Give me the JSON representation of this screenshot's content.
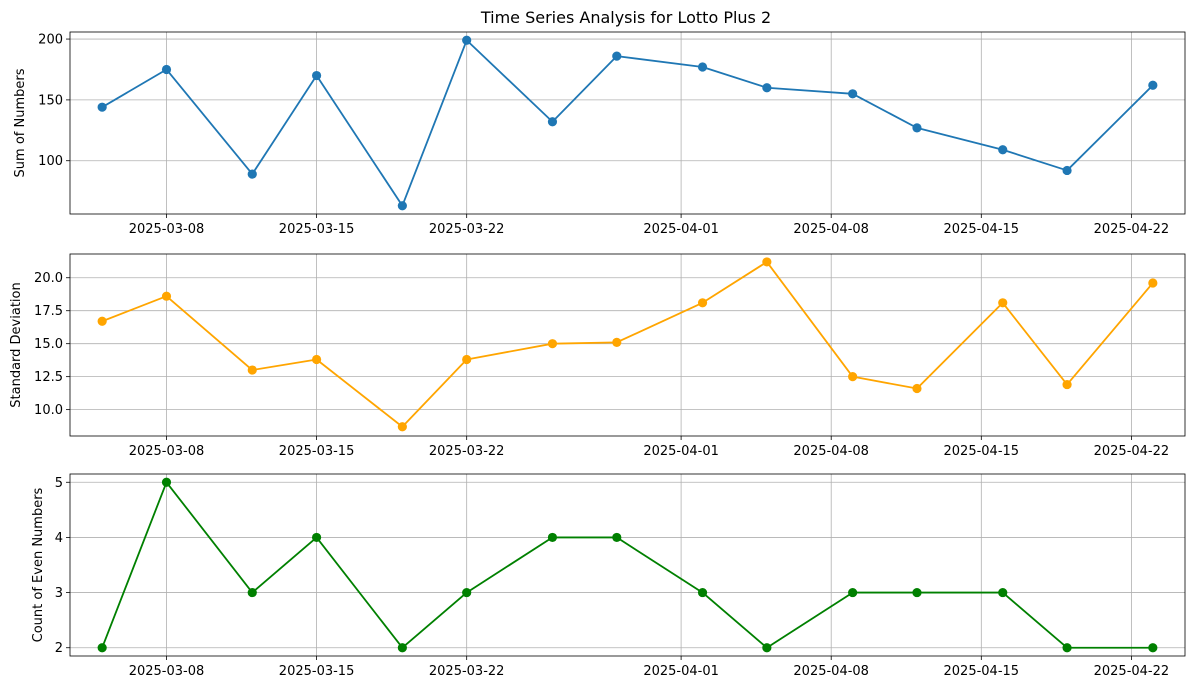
{
  "figure_title": "Time Series Analysis for Lotto Plus 2",
  "chart_data": [
    {
      "type": "line",
      "title": "Time Series Analysis for Lotto Plus 2",
      "xlabel": "",
      "ylabel": "Sum of Numbers",
      "color": "#1f77b4",
      "grid": true,
      "x": [
        "2025-03-05",
        "2025-03-08",
        "2025-03-12",
        "2025-03-15",
        "2025-03-19",
        "2025-03-22",
        "2025-03-26",
        "2025-03-29",
        "2025-04-02",
        "2025-04-05",
        "2025-04-09",
        "2025-04-12",
        "2025-04-16",
        "2025-04-19",
        "2025-04-23"
      ],
      "values": [
        144,
        175,
        89,
        170,
        63,
        199,
        132,
        186,
        177,
        160,
        155,
        127,
        109,
        92,
        162
      ],
      "ylim": [
        56.2,
        205.8
      ],
      "yticks": [
        100,
        150,
        200
      ],
      "xticks": [
        "2025-03-08",
        "2025-03-15",
        "2025-03-22",
        "2025-04-01",
        "2025-04-08",
        "2025-04-15",
        "2025-04-22"
      ]
    },
    {
      "type": "line",
      "title": "",
      "xlabel": "",
      "ylabel": "Standard Deviation",
      "color": "#ffa500",
      "grid": true,
      "x": [
        "2025-03-05",
        "2025-03-08",
        "2025-03-12",
        "2025-03-15",
        "2025-03-19",
        "2025-03-22",
        "2025-03-26",
        "2025-03-29",
        "2025-04-02",
        "2025-04-05",
        "2025-04-09",
        "2025-04-12",
        "2025-04-16",
        "2025-04-19",
        "2025-04-23"
      ],
      "values": [
        16.7,
        18.6,
        13.0,
        13.8,
        8.7,
        13.8,
        15.0,
        15.1,
        18.1,
        21.2,
        12.5,
        11.6,
        18.1,
        11.9,
        19.6
      ],
      "ylim": [
        8.0,
        21.8
      ],
      "yticks": [
        10.0,
        12.5,
        15.0,
        17.5,
        20.0
      ],
      "xticks": [
        "2025-03-08",
        "2025-03-15",
        "2025-03-22",
        "2025-04-01",
        "2025-04-08",
        "2025-04-15",
        "2025-04-22"
      ]
    },
    {
      "type": "line",
      "title": "",
      "xlabel": "",
      "ylabel": "Count of Even Numbers",
      "color": "#008000",
      "grid": true,
      "x": [
        "2025-03-05",
        "2025-03-08",
        "2025-03-12",
        "2025-03-15",
        "2025-03-19",
        "2025-03-22",
        "2025-03-26",
        "2025-03-29",
        "2025-04-02",
        "2025-04-05",
        "2025-04-09",
        "2025-04-12",
        "2025-04-16",
        "2025-04-19",
        "2025-04-23"
      ],
      "values": [
        2,
        5,
        3,
        4,
        2,
        3,
        4,
        4,
        3,
        2,
        3,
        3,
        3,
        2,
        2
      ],
      "ylim": [
        1.85,
        5.15
      ],
      "yticks": [
        2,
        3,
        4,
        5
      ],
      "xticks": [
        "2025-03-08",
        "2025-03-15",
        "2025-03-22",
        "2025-04-01",
        "2025-04-08",
        "2025-04-15",
        "2025-04-22"
      ]
    }
  ]
}
